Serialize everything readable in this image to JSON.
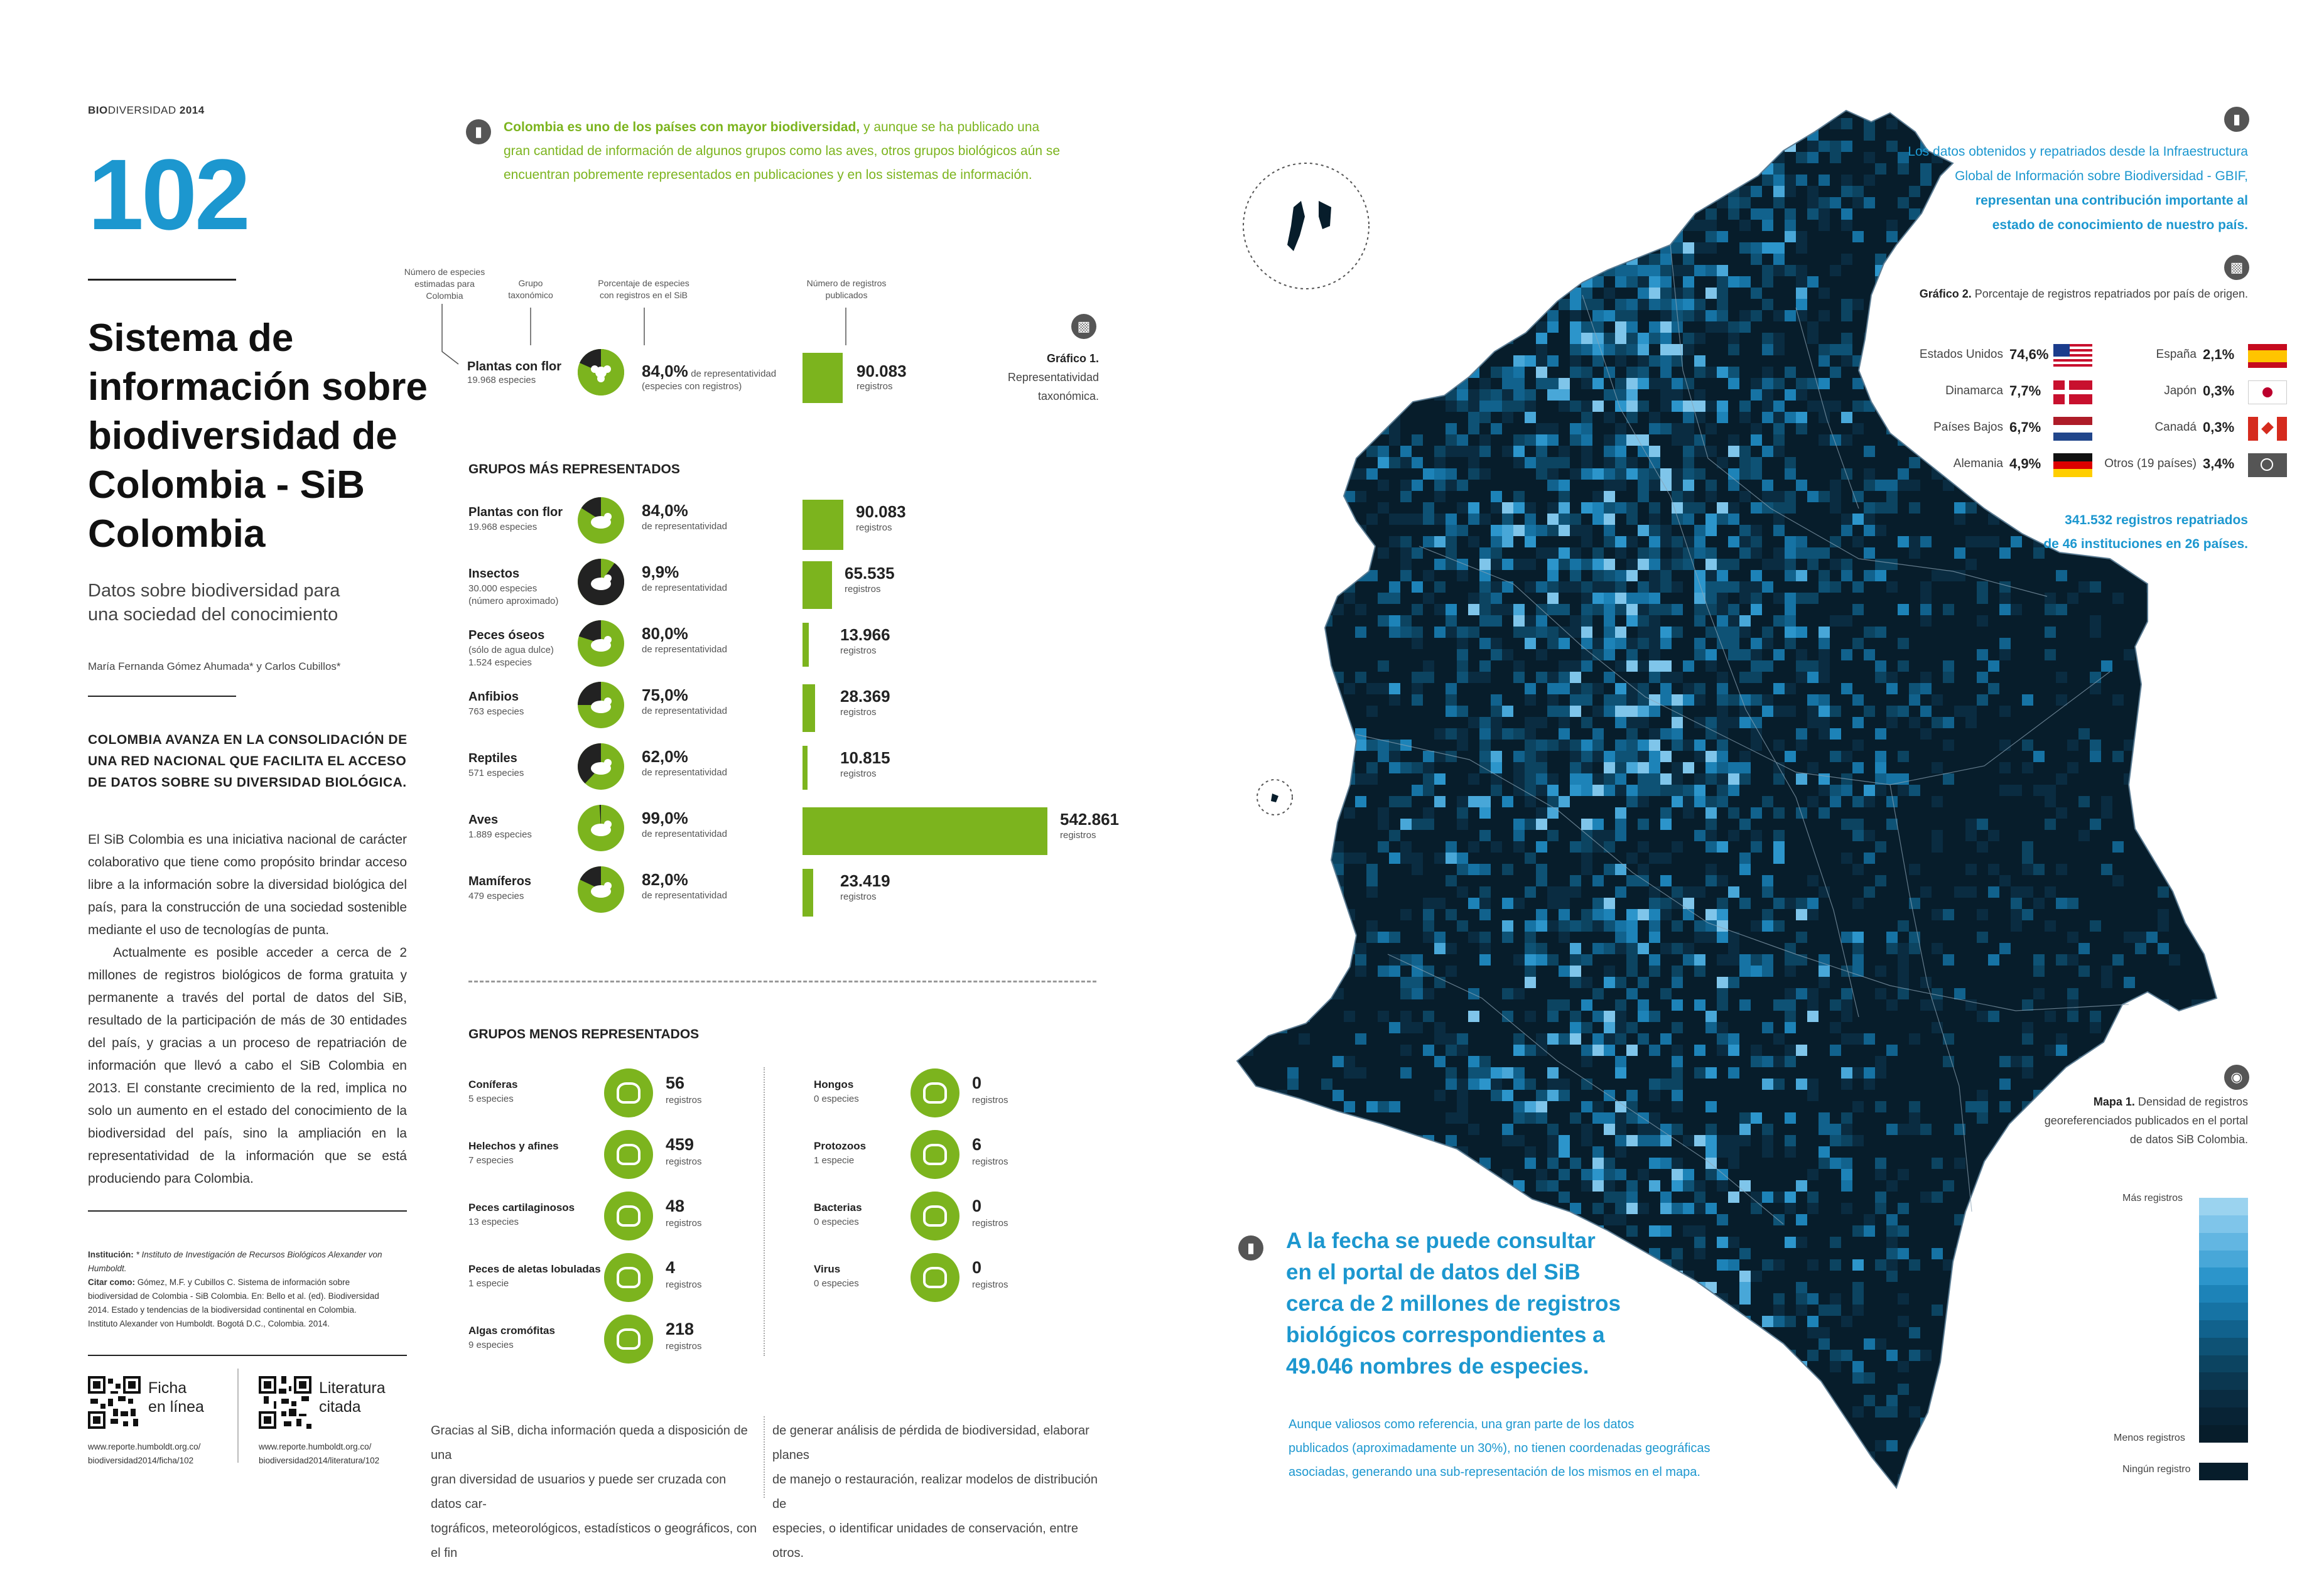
{
  "header": {
    "bio": "BIO",
    "rest": "DIVERSIDAD",
    "year": "2014"
  },
  "page_number": "102",
  "title_lines": [
    "Sistema de",
    "información sobre",
    "biodiversidad de",
    "Colombia - SiB",
    "Colombia"
  ],
  "subtitle_lines": [
    "Datos sobre biodiversidad para",
    "una sociedad del conocimiento"
  ],
  "authors": "María Fernanda Gómez Ahumada* y Carlos Cubillos*",
  "lead_lines": [
    "COLOMBIA AVANZA EN LA CONSOLIDACIÓN DE",
    "UNA RED NACIONAL QUE FACILITA EL ACCESO",
    "DE DATOS SOBRE SU DIVERSIDAD BIOLÓGICA."
  ],
  "body_paragraphs": [
    "El SiB Colombia es una iniciativa nacional de carácter colaborativo que tiene como propósito brindar acceso libre a la información sobre la diversidad biológica del país, para la construcción de una sociedad sostenible mediante el uso de tecnologías de punta.",
    "Actualmente es posible acceder a cerca de 2 millones de registros biológicos de forma gratuita y permanente a través del portal de datos del SiB, resultado de la participación de más de 30 entidades del país, y gracias a un proceso de repatriación de información que llevó a cabo el SiB Colombia en 2013. El constante crecimiento de la red, implica no solo un aumento en el estado del conocimiento de la biodiversidad del país, sino la ampliación en la representatividad de la información que se está produciendo para Colombia."
  ],
  "institution_note": {
    "inst_label": "Institución:",
    "inst_text": "* Instituto de Investigación de Recursos Biológicos Alexander von Humboldt.",
    "cite_label": "Citar como:",
    "cite_lines": [
      "Gómez, M.F. y Cubillos C. Sistema de información sobre",
      "biodiversidad de Colombia - SiB Colombia. En: Bello et al. (ed). Biodiversidad",
      "2014. Estado y tendencias de la biodiversidad continental en Colombia.",
      "Instituto Alexander von Humboldt. Bogotá D.C., Colombia. 2014."
    ]
  },
  "qr": [
    {
      "label_lines": [
        "Ficha",
        "en línea"
      ],
      "url_lines": [
        "www.reporte.humboldt.org.co/",
        "biodiversidad2014/ficha/102"
      ]
    },
    {
      "label_lines": [
        "Literatura",
        "citada"
      ],
      "url_lines": [
        "www.reporte.humboldt.org.co/",
        "biodiversidad2014/literatura/102"
      ]
    }
  ],
  "intro_green": {
    "bold": "Colombia es uno de los países con mayor biodiversidad,",
    "rest_lines": [
      " y aunque se ha publicado una",
      "gran cantidad de información de algunos grupos como las aves, otros grupos biológicos aún se",
      "encuentran pobremente representados en publicaciones y en los sistemas de información."
    ]
  },
  "column_headers": [
    [
      "Número de especies",
      "estimadas para",
      "Colombia"
    ],
    [
      "Grupo",
      "taxonómico"
    ],
    [
      "Porcentaje de especies",
      "con registros en el SiB"
    ],
    [
      "Número de registros",
      "publicados"
    ]
  ],
  "legend_example": {
    "name": "Plantas con flor",
    "sub": "19.968 especies",
    "pct": "84,0%",
    "pct_sub1": "de representatividad",
    "pct_sub2": "(especies con registros)",
    "reg": "90.083",
    "reg_sub": "registros"
  },
  "grafico1": {
    "title": "Gráfico 1.",
    "lines": [
      "Representatividad",
      "taxonómica."
    ]
  },
  "more_title": "GRUPOS MÁS REPRESENTADOS",
  "less_title": "GRUPOS MENOS REPRESENTADOS",
  "pct_suffix": "de representatividad",
  "reg_suffix": "registros",
  "more_groups": [
    {
      "name": "Plantas con flor",
      "sub": [
        "19.968 especies"
      ],
      "pct": "84,0%",
      "reg": "90.083",
      "icon": "flower-icon"
    },
    {
      "name": "Insectos",
      "sub": [
        "30.000 especies",
        "(número aproximado)"
      ],
      "pct": "9,9%",
      "reg": "65.535",
      "icon": "insect-icon"
    },
    {
      "name": "Peces óseos",
      "sub": [
        "(sólo de agua dulce)",
        "1.524 especies"
      ],
      "pct": "80,0%",
      "reg": "13.966",
      "icon": "fish-icon"
    },
    {
      "name": "Anfibios",
      "sub": [
        "763 especies"
      ],
      "pct": "75,0%",
      "reg": "28.369",
      "icon": "frog-icon"
    },
    {
      "name": "Reptiles",
      "sub": [
        "571 especies"
      ],
      "pct": "62,0%",
      "reg": "10.815",
      "icon": "turtle-icon"
    },
    {
      "name": "Aves",
      "sub": [
        "1.889 especies"
      ],
      "pct": "99,0%",
      "reg": "542.861",
      "icon": "bird-icon"
    },
    {
      "name": "Mamíferos",
      "sub": [
        "479 especies"
      ],
      "pct": "82,0%",
      "reg": "23.419",
      "icon": "tapir-icon"
    }
  ],
  "less_groups_left": [
    {
      "name": "Coníferas",
      "sub": "5 especies",
      "num": "56"
    },
    {
      "name": "Helechos y afines",
      "sub": "7 especies",
      "num": "459"
    },
    {
      "name": "Peces cartilaginosos",
      "sub": "13 especies",
      "num": "48"
    },
    {
      "name": "Peces de aletas lobuladas",
      "sub": "1 especie",
      "num": "4"
    },
    {
      "name": "Algas cromófitas",
      "sub": "9 especies",
      "num": "218"
    }
  ],
  "less_groups_right": [
    {
      "name": "Hongos",
      "sub": "0 especies",
      "num": "0"
    },
    {
      "name": "Protozoos",
      "sub": "1 especie",
      "num": "6"
    },
    {
      "name": "Bacterias",
      "sub": "0 especies",
      "num": "0"
    },
    {
      "name": "Virus",
      "sub": "0 especies",
      "num": "0"
    }
  ],
  "bottom_col1": [
    "Gracias al SiB, dicha información queda a disposición de una",
    "gran diversidad de usuarios y puede ser cruzada con datos car-",
    "tográficos, meteorológicos, estadísticos o geográficos, con el fin"
  ],
  "bottom_col2": [
    "de generar análisis de pérdida de biodiversidad, elaborar planes",
    "de manejo o restauración, realizar modelos de distribución de",
    "especies, o identificar unidades de conservación, entre otros."
  ],
  "intro_blue": {
    "lines": [
      "Los datos obtenidos y repatriados desde la Infraestructura",
      "Global de Información sobre Biodiversidad - GBIF,"
    ],
    "bold_lines": [
      "representan una contribución importante al",
      "estado de conocimiento de nuestro país."
    ]
  },
  "grafico2": {
    "title": "Gráfico 2.",
    "text": " Porcentaje de registros repatriados por país de origen."
  },
  "countries_left": [
    {
      "name": "Estados Unidos",
      "val": "74,6%"
    },
    {
      "name": "Dinamarca",
      "val": "7,7%"
    },
    {
      "name": "Países Bajos",
      "val": "6,7%"
    },
    {
      "name": "Alemania",
      "val": "4,9%"
    }
  ],
  "countries_right": [
    {
      "name": "España",
      "val": "2,1%"
    },
    {
      "name": "Japón",
      "val": "0,3%"
    },
    {
      "name": "Canadá",
      "val": "0,3%"
    },
    {
      "name": "Otros (19 países)",
      "val": "3,4%"
    }
  ],
  "repatriated_lines": [
    "341.532 registros repatriados",
    "de 46 instituciones en 26 países."
  ],
  "mapa1": {
    "title": "Mapa 1.",
    "text_lines": [
      " Densidad de registros",
      "georeferenciados publicados en el portal",
      "de datos SiB Colombia."
    ]
  },
  "legend": {
    "more": "Más registros",
    "less": "Menos registros",
    "none": "Ningún registro"
  },
  "highlight_lines": [
    "A la fecha se puede consultar",
    "en el portal de datos del SiB",
    "cerca de 2 millones de registros",
    "biológicos correspondientes a",
    "49.046 nombres de especies."
  ],
  "highlight_small": [
    "Aunque valiosos como referencia, una gran parte de los datos",
    "publicados (aproximadamente un 30%), no tienen coordenadas geográficas",
    "asociadas, generando una sub-representación de los mismos en el mapa."
  ],
  "colors": {
    "green": "#7cb41e",
    "blue": "#1c97cf",
    "map_bg": "#071d2b"
  },
  "chart_data": {
    "type": "bar",
    "categories": [
      "Plantas con flor",
      "Insectos",
      "Peces óseos",
      "Anfibios",
      "Reptiles",
      "Aves",
      "Mamíferos"
    ],
    "values": [
      90083,
      65535,
      13966,
      28369,
      10815,
      542861,
      23419
    ],
    "representatividad": [
      84.0,
      9.9,
      80.0,
      75.0,
      62.0,
      99.0,
      82.0
    ]
  }
}
